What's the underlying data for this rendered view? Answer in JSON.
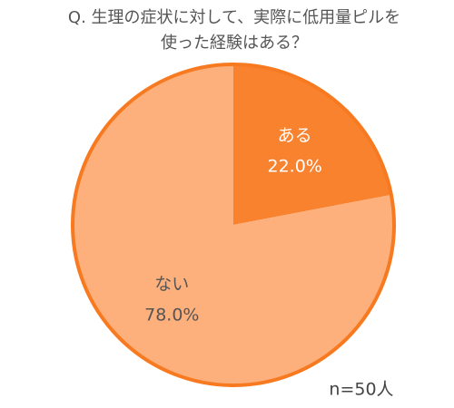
{
  "chart_data": {
    "type": "pie",
    "title": [
      "Q. 生理の症状に対して、実際に低用量ピルを",
      "使った経験はある？"
    ],
    "categories": [
      "ある",
      "ない"
    ],
    "values": [
      22.0,
      78.0
    ],
    "value_labels": [
      "22.0%",
      "78.0%"
    ],
    "colors": [
      "#f9822f",
      "#fdb07c"
    ],
    "border_color": "#f77a20",
    "annotation": "n=50人"
  }
}
